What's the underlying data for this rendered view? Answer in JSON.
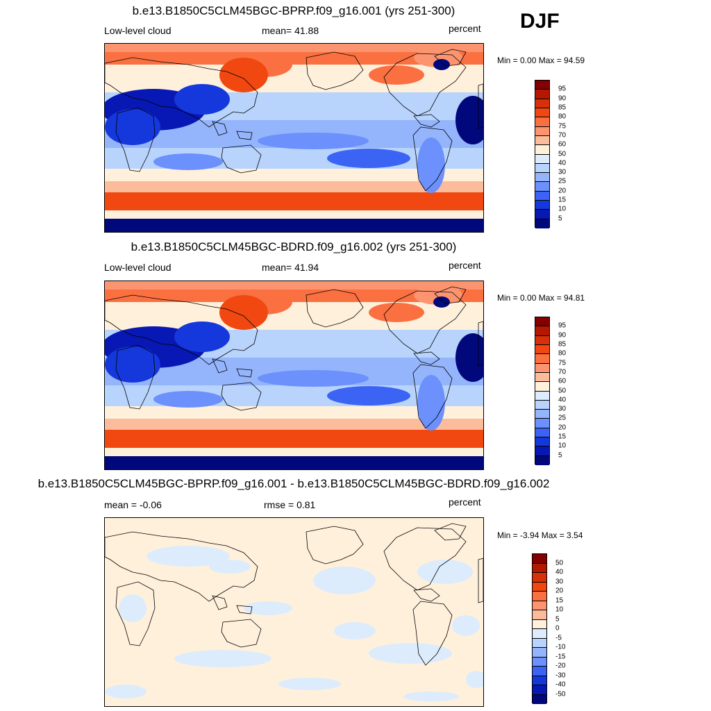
{
  "season": "DJF",
  "chart_data": [
    {
      "type": "heatmap",
      "title": "b.e13.B1850C5CLM45BGC-BPRP.f09_g16.001 (yrs 251-300)",
      "variable": "Low-level cloud",
      "mean_text": "mean=  41.88",
      "units": "percent",
      "minmax_text": "Min =   0.00 Max =  94.59",
      "min": 0.0,
      "max": 94.59,
      "colorbar_levels": [
        "95",
        "90",
        "85",
        "80",
        "75",
        "70",
        "60",
        "50",
        "40",
        "30",
        "25",
        "20",
        "15",
        "10",
        "5"
      ],
      "colorbar_colors": [
        "#840000",
        "#b41800",
        "#d83008",
        "#f04810",
        "#fa7040",
        "#fc9470",
        "#fcbc9c",
        "#fff0dc",
        "#dcecfc",
        "#b8d4fc",
        "#94b4fc",
        "#6c90fc",
        "#3c64f4",
        "#1438dc",
        "#0818b4",
        "#00087c"
      ]
    },
    {
      "type": "heatmap",
      "title": "b.e13.B1850C5CLM45BGC-BDRD.f09_g16.002 (yrs 251-300)",
      "variable": "Low-level cloud",
      "mean_text": "mean=  41.94",
      "units": "percent",
      "minmax_text": "Min =   0.00 Max =  94.81",
      "min": 0.0,
      "max": 94.81,
      "colorbar_levels": [
        "95",
        "90",
        "85",
        "80",
        "75",
        "70",
        "60",
        "50",
        "40",
        "30",
        "25",
        "20",
        "15",
        "10",
        "5"
      ],
      "colorbar_colors": [
        "#840000",
        "#b41800",
        "#d83008",
        "#f04810",
        "#fa7040",
        "#fc9470",
        "#fcbc9c",
        "#fff0dc",
        "#dcecfc",
        "#b8d4fc",
        "#94b4fc",
        "#6c90fc",
        "#3c64f4",
        "#1438dc",
        "#0818b4",
        "#00087c"
      ]
    },
    {
      "type": "heatmap",
      "title": "b.e13.B1850C5CLM45BGC-BPRP.f09_g16.001 - b.e13.B1850C5CLM45BGC-BDRD.f09_g16.002",
      "mean_text": "mean =  -0.06",
      "rmse_text": "rmse =   0.81",
      "units": "percent",
      "minmax_text": "Min =  -3.94 Max =   3.54",
      "min": -3.94,
      "max": 3.54,
      "colorbar_levels": [
        "50",
        "40",
        "30",
        "20",
        "15",
        "10",
        "5",
        "0",
        "-5",
        "-10",
        "-15",
        "-20",
        "-30",
        "-40",
        "-50"
      ],
      "colorbar_colors": [
        "#840000",
        "#b41800",
        "#d83008",
        "#f04810",
        "#fa7040",
        "#fc9470",
        "#fcbc9c",
        "#fff0dc",
        "#dcecfc",
        "#b8d4fc",
        "#94b4fc",
        "#6c90fc",
        "#3c64f4",
        "#1438dc",
        "#0818b4",
        "#00087c"
      ]
    }
  ]
}
